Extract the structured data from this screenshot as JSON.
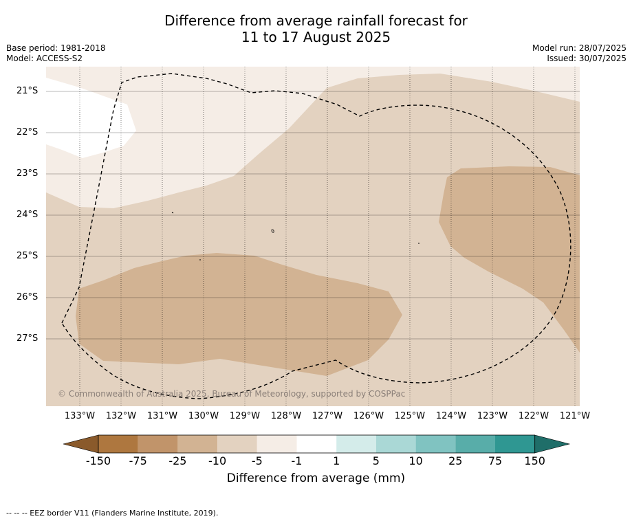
{
  "header": {
    "title_line1": "Difference from average rainfall forecast for",
    "title_line2": "11 to 17 August 2025",
    "base_period": "Base period: 1981-2018",
    "model": "Model: ACCESS-S2",
    "model_run": "Model run: 28/07/2025",
    "issued": "Issued: 30/07/2025"
  },
  "map": {
    "lat_labels": [
      "21°S",
      "22°S",
      "23°S",
      "24°S",
      "25°S",
      "26°S",
      "27°S"
    ],
    "lon_labels": [
      "133°W",
      "132°W",
      "131°W",
      "130°W",
      "129°W",
      "128°W",
      "127°W",
      "126°W",
      "125°W",
      "124°W",
      "123°W",
      "122°W",
      "121°W"
    ],
    "copyright": "© Commonwealth of Australia 2025, Bureau of Meteorology, supported by COSPPac"
  },
  "legend": {
    "tick_labels": [
      "-150",
      "-75",
      "-25",
      "-10",
      "-5",
      "-1",
      "1",
      "5",
      "10",
      "25",
      "75",
      "150"
    ],
    "colors": [
      "#8a5a2b",
      "#ae773f",
      "#c1946a",
      "#d2b393",
      "#e3d2c0",
      "#f5ede6",
      "#ffffff",
      "#d4ecea",
      "#aad8d6",
      "#80c3c1",
      "#58ada9",
      "#2f9792",
      "#1f6e69"
    ],
    "title": "Difference from average (mm)"
  },
  "footer": {
    "eez_note": "--  --  -- EEZ border V11 (Flanders Marine Institute, 2019)."
  }
}
